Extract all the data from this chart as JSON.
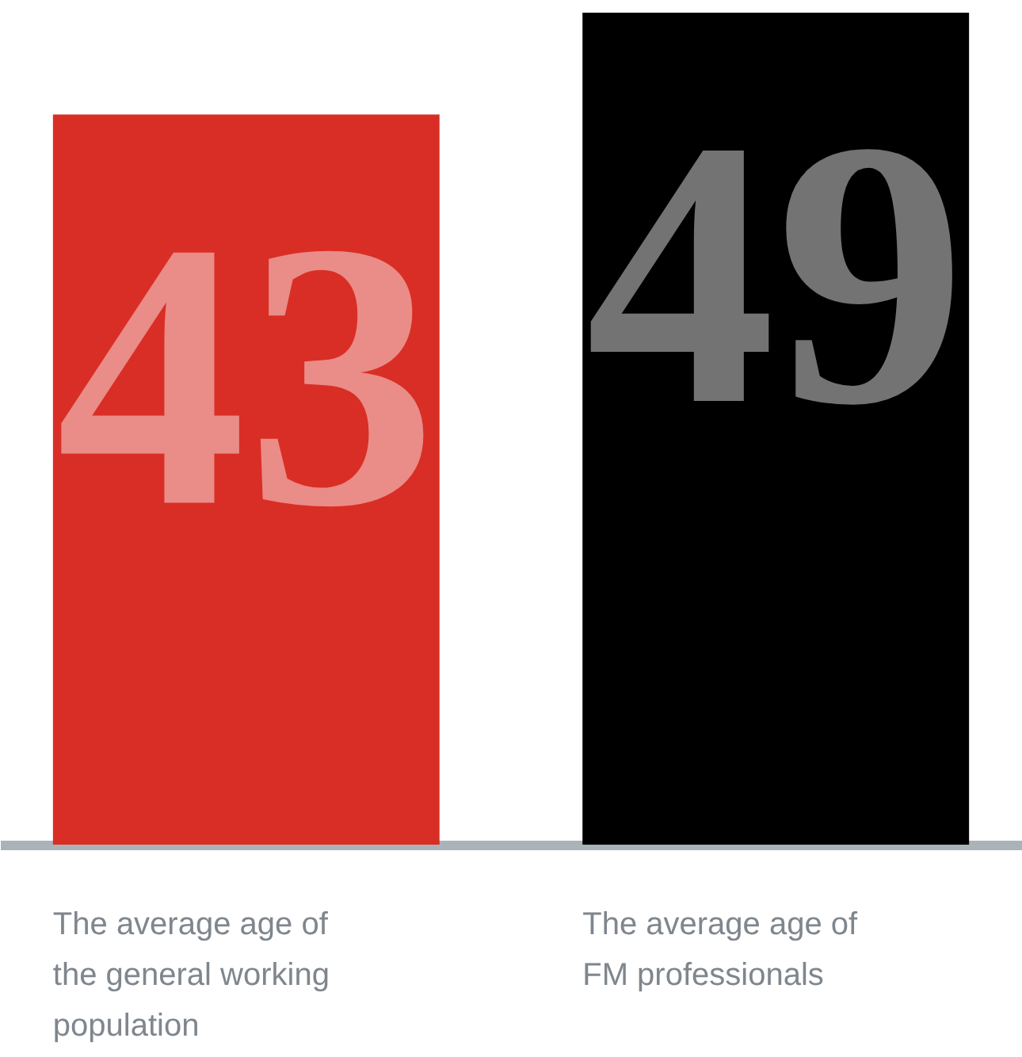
{
  "chart_data": {
    "type": "bar",
    "categories": [
      "The average age of the general working population",
      "The average age of FM professionals"
    ],
    "values": [
      43,
      49
    ],
    "colors": [
      "#d92e25",
      "#000000"
    ],
    "data_labels": true,
    "grid": false
  }
}
